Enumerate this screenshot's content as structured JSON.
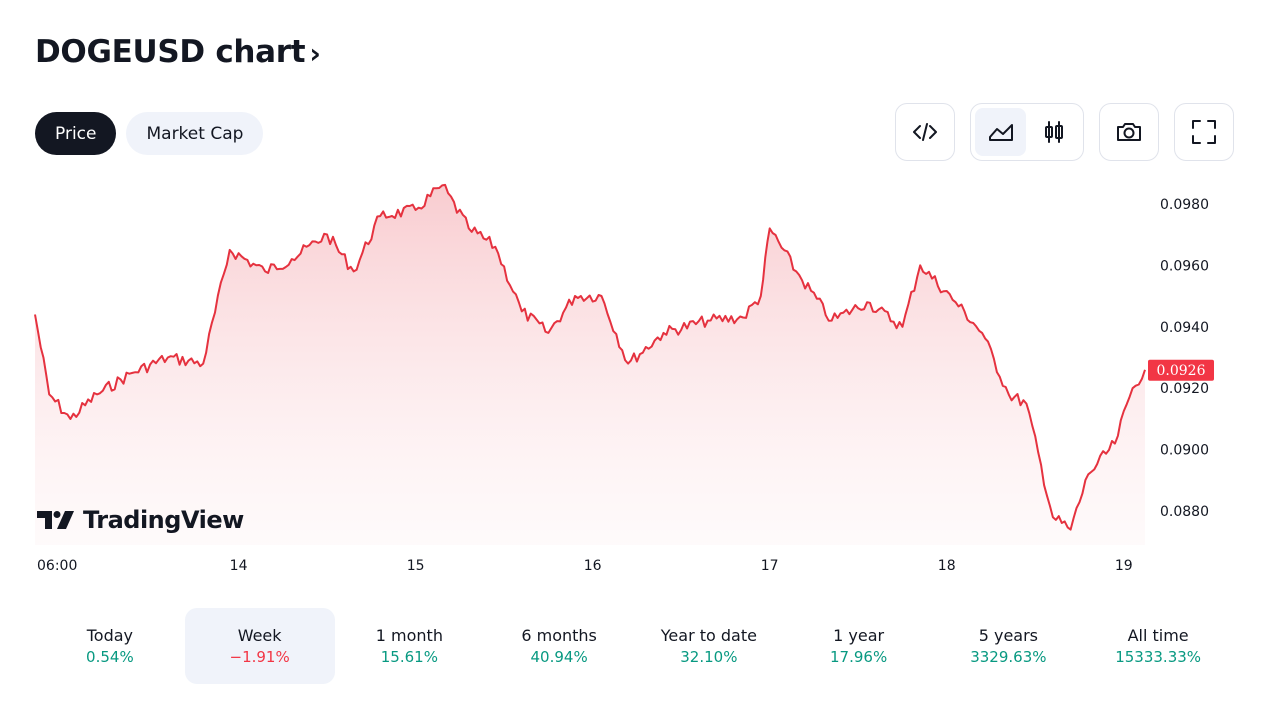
{
  "header": {
    "title": "DOGEUSD chart",
    "chevron": "›"
  },
  "tabs": [
    {
      "label": "Price",
      "active": true
    },
    {
      "label": "Market Cap",
      "active": false
    }
  ],
  "toolbar": {
    "embed_icon": "code-icon",
    "area_icon": "area-chart-icon",
    "candles_icon": "candlestick-icon",
    "snapshot_icon": "camera-icon",
    "fullscreen_icon": "fullscreen-icon",
    "active_style": "area"
  },
  "brand": {
    "name": "TradingView"
  },
  "colors": {
    "line": "#e5323f",
    "fill_top": "#f8c9cd",
    "badge": "#f23645",
    "positive": "#089981",
    "negative": "#f23645"
  },
  "chart_data": {
    "type": "area",
    "x_tick_labels": [
      "06:00",
      "14",
      "15",
      "16",
      "17",
      "18",
      "19"
    ],
    "x_tick_positions": [
      0,
      1.15,
      2.15,
      3.15,
      4.15,
      5.15,
      6.15
    ],
    "y_ticks": [
      "0.0880",
      "0.0900",
      "0.0920",
      "0.0940",
      "0.0960",
      "0.0980"
    ],
    "ylim": [
      0.0869,
      0.0991
    ],
    "last_price": "0.0926",
    "x": [
      0,
      0.08,
      0.2,
      0.35,
      0.55,
      0.75,
      0.95,
      1.1,
      1.3,
      1.45,
      1.65,
      1.8,
      1.95,
      2.15,
      2.3,
      2.45,
      2.6,
      2.75,
      2.9,
      3.05,
      3.2,
      3.35,
      3.55,
      3.8,
      4.0,
      4.1,
      4.15,
      4.3,
      4.5,
      4.7,
      4.9,
      5.0,
      5.2,
      5.35,
      5.5,
      5.6,
      5.75,
      5.85,
      5.95,
      6.1,
      6.2,
      6.27
    ],
    "values": [
      0.0944,
      0.0918,
      0.091,
      0.0918,
      0.0925,
      0.093,
      0.0928,
      0.0965,
      0.0958,
      0.0962,
      0.097,
      0.0958,
      0.0976,
      0.0978,
      0.0986,
      0.0972,
      0.0966,
      0.0945,
      0.0938,
      0.095,
      0.095,
      0.0928,
      0.0938,
      0.0942,
      0.0943,
      0.095,
      0.0972,
      0.0958,
      0.0942,
      0.0948,
      0.094,
      0.096,
      0.0948,
      0.0938,
      0.0918,
      0.0915,
      0.0878,
      0.0874,
      0.0892,
      0.0902,
      0.092,
      0.0926
    ],
    "grid": false
  },
  "periods": [
    {
      "label": "Today",
      "value": "0.54%",
      "trend": "pos",
      "active": false
    },
    {
      "label": "Week",
      "value": "−1.91%",
      "trend": "neg",
      "active": true
    },
    {
      "label": "1 month",
      "value": "15.61%",
      "trend": "pos",
      "active": false
    },
    {
      "label": "6 months",
      "value": "40.94%",
      "trend": "pos",
      "active": false
    },
    {
      "label": "Year to date",
      "value": "32.10%",
      "trend": "pos",
      "active": false
    },
    {
      "label": "1 year",
      "value": "17.96%",
      "trend": "pos",
      "active": false
    },
    {
      "label": "5 years",
      "value": "3329.63%",
      "trend": "pos",
      "active": false
    },
    {
      "label": "All time",
      "value": "15333.33%",
      "trend": "pos",
      "active": false
    }
  ]
}
